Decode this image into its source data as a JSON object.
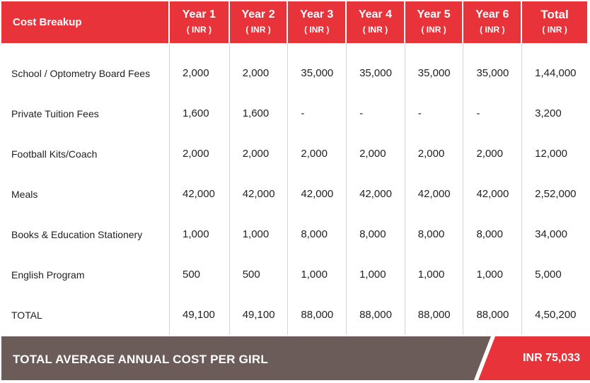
{
  "colors": {
    "header_red": "#e8333b",
    "footer_gray": "#6b5c5a",
    "grid_line": "#d5d5d5"
  },
  "table": {
    "corner_label": "Cost Breakup",
    "columns": [
      {
        "label": "Year 1",
        "unit": "( INR )"
      },
      {
        "label": "Year 2",
        "unit": "( INR )"
      },
      {
        "label": "Year 3",
        "unit": "( INR )"
      },
      {
        "label": "Year 4",
        "unit": "( INR )"
      },
      {
        "label": "Year 5",
        "unit": "( INR )"
      },
      {
        "label": "Year 6",
        "unit": "( INR )"
      },
      {
        "label": "Total",
        "unit": "( INR )"
      }
    ],
    "rows": [
      {
        "label": "School / Optometry Board Fees",
        "values": [
          "2,000",
          "2,000",
          "35,000",
          "35,000",
          "35,000",
          "35,000",
          "1,44,000"
        ]
      },
      {
        "label": "Private Tuition Fees",
        "values": [
          "1,600",
          "1,600",
          "-",
          "-",
          "-",
          "-",
          "3,200"
        ]
      },
      {
        "label": "Football Kits/Coach",
        "values": [
          "2,000",
          "2,000",
          "2,000",
          "2,000",
          "2,000",
          "2,000",
          "12,000"
        ]
      },
      {
        "label": "Meals",
        "values": [
          "42,000",
          "42,000",
          "42,000",
          "42,000",
          "42,000",
          "42,000",
          "2,52,000"
        ]
      },
      {
        "label": "Books & Education Stationery",
        "values": [
          "1,000",
          "1,000",
          "8,000",
          "8,000",
          "8,000",
          "8,000",
          "34,000"
        ]
      },
      {
        "label": "English Program",
        "values": [
          "500",
          "500",
          "1,000",
          "1,000",
          "1,000",
          "1,000",
          "5,000"
        ]
      },
      {
        "label": "TOTAL",
        "values": [
          "49,100",
          "49,100",
          "88,000",
          "88,000",
          "88,000",
          "88,000",
          "4,50,200"
        ]
      }
    ]
  },
  "footer": {
    "label": "TOTAL AVERAGE ANNUAL COST PER GIRL",
    "value": "INR 75,033"
  }
}
